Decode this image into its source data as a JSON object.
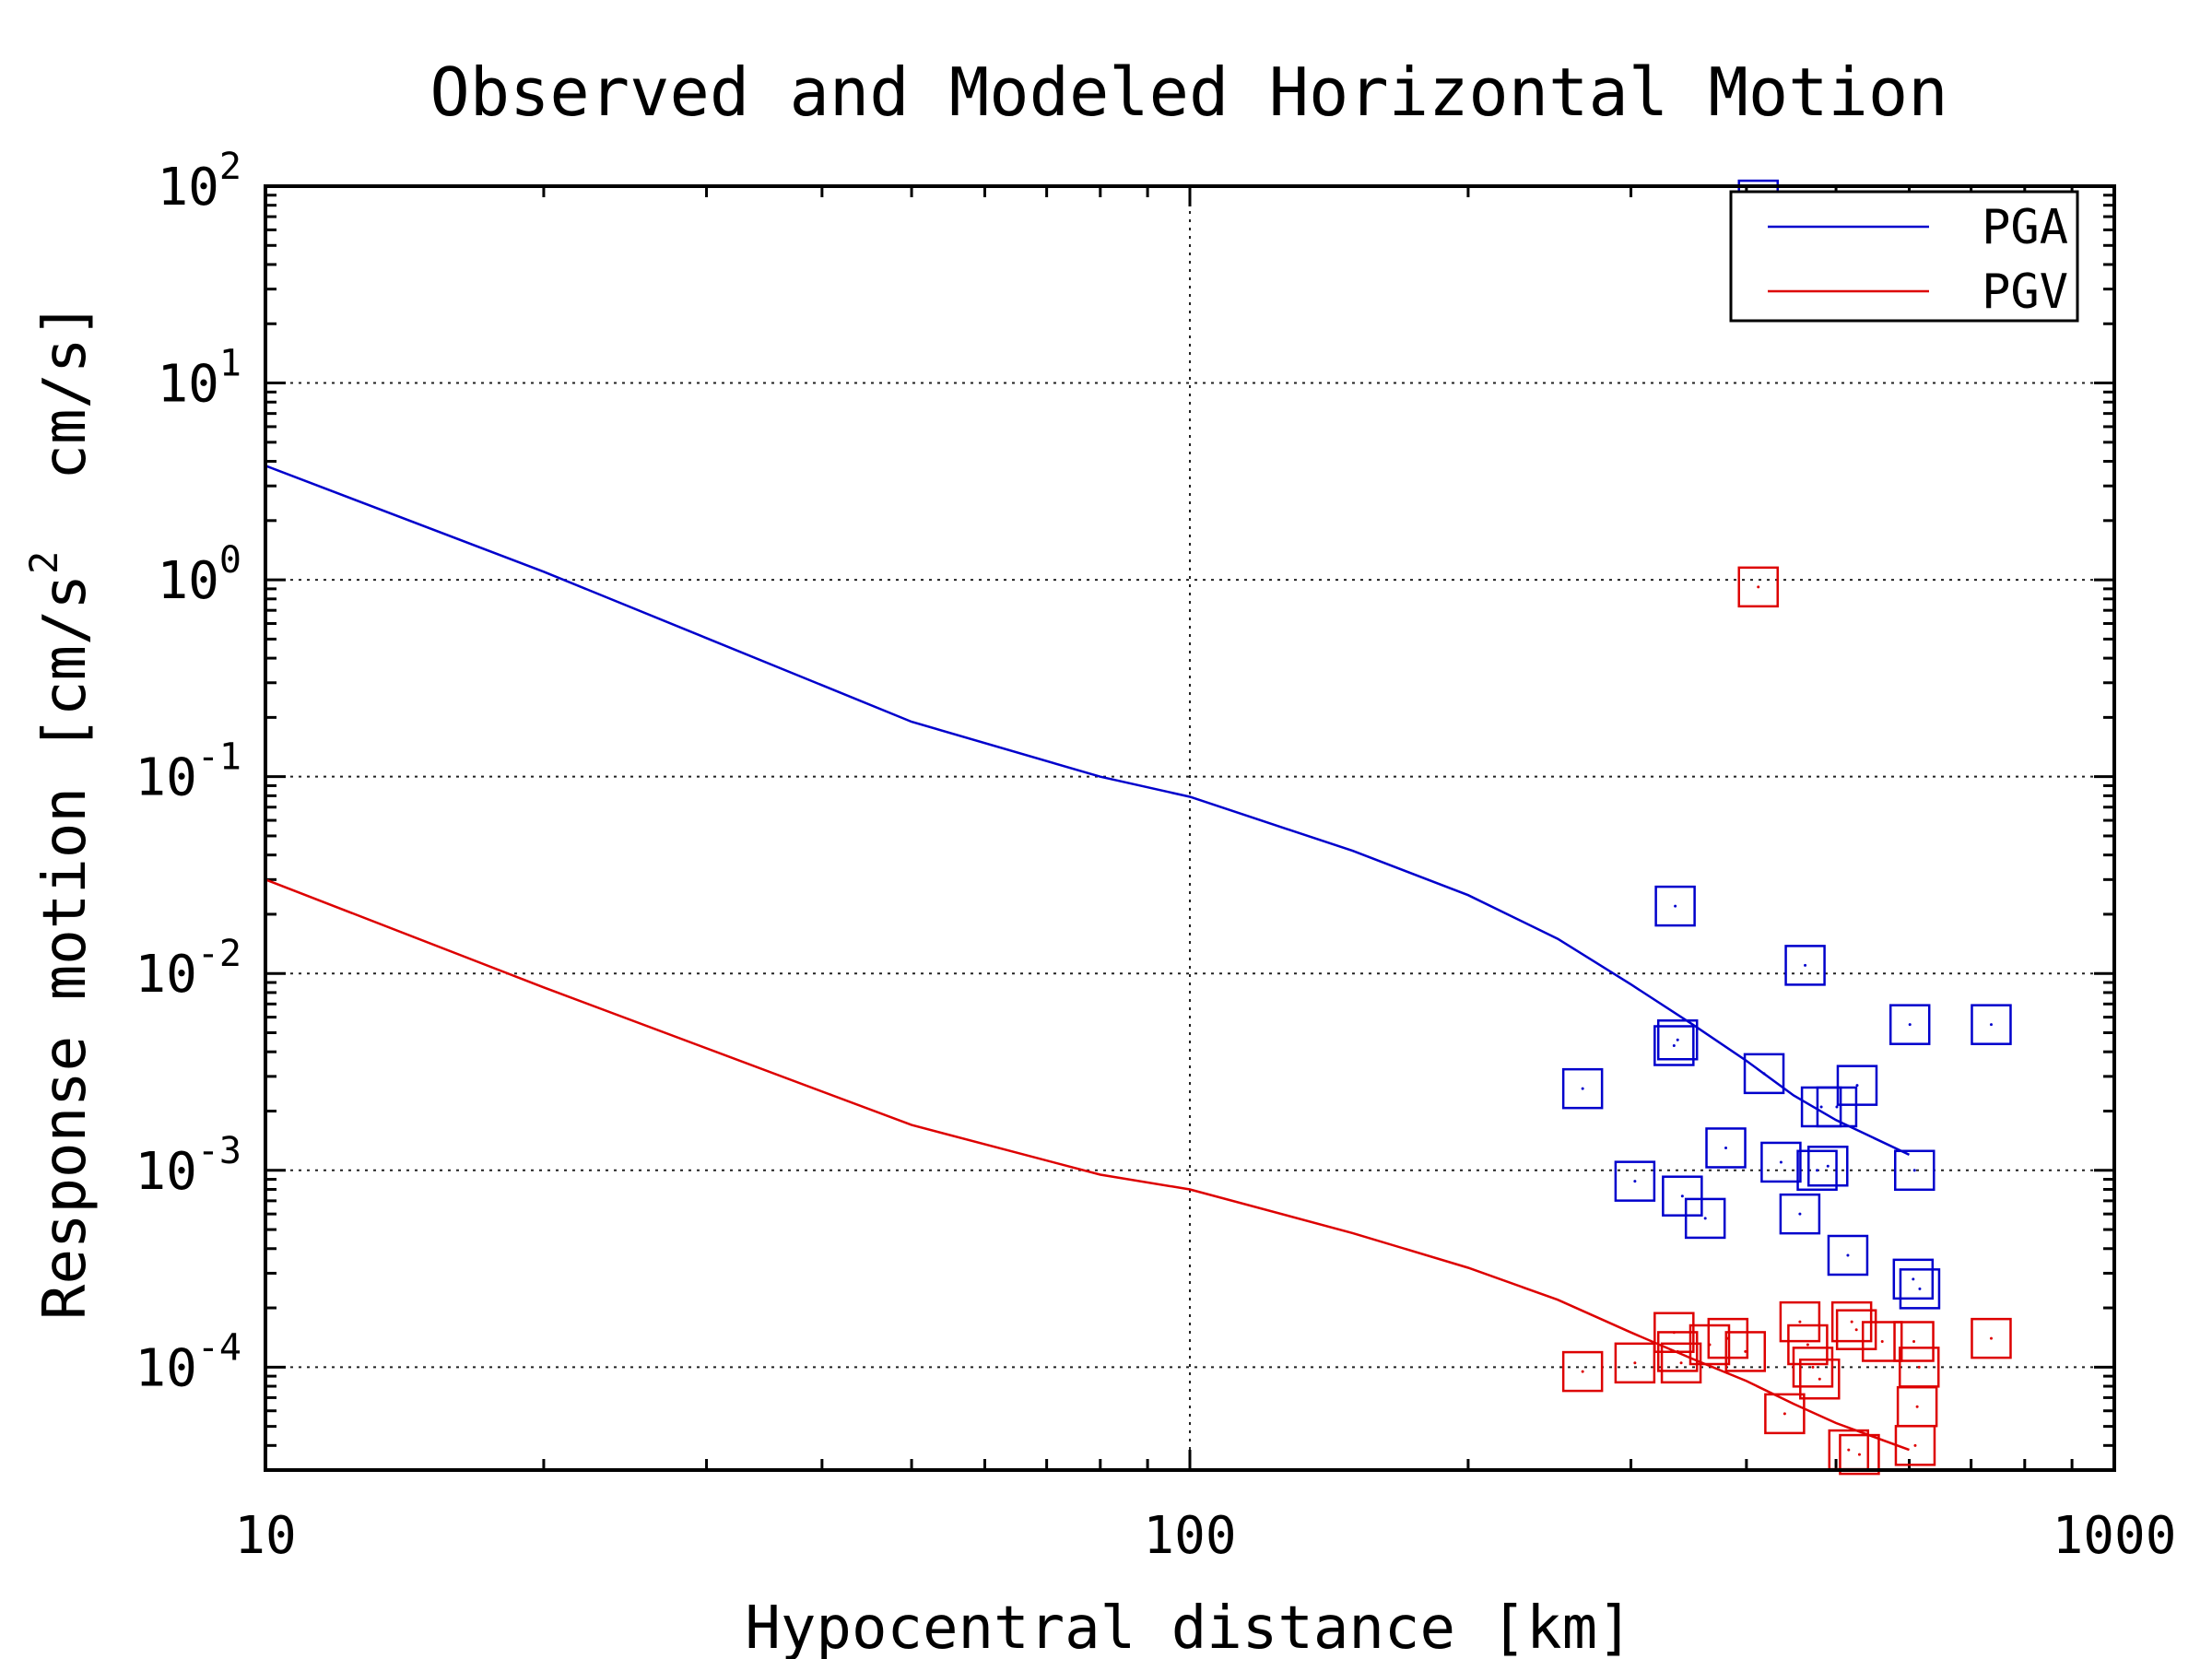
{
  "chart_data": {
    "type": "scatter",
    "title": "Observed and Modeled Horizontal Motion",
    "xlabel": "Hypocentral distance [km]",
    "ylabel": {
      "prefix": "Response motion [cm/s",
      "sup": "2",
      "suffix": "  cm/s]"
    },
    "xscale": "log",
    "yscale": "log",
    "xlim": [
      10,
      1000
    ],
    "ylim": [
      3e-05,
      100
    ],
    "xticks": [
      {
        "value": 10,
        "label": "10"
      },
      {
        "value": 100,
        "label": "100"
      },
      {
        "value": 1000,
        "label": "1000"
      }
    ],
    "yticks": [
      {
        "value": 100,
        "base": "10",
        "exp": "2"
      },
      {
        "value": 10,
        "base": "10",
        "exp": "1"
      },
      {
        "value": 1,
        "base": "10",
        "exp": "0"
      },
      {
        "value": 0.1,
        "base": "10",
        "exp": "-1"
      },
      {
        "value": 0.01,
        "base": "10",
        "exp": "-2"
      },
      {
        "value": 0.001,
        "base": "10",
        "exp": "-3"
      },
      {
        "value": 0.0001,
        "base": "10",
        "exp": "-4"
      }
    ],
    "grid": true,
    "legend_position": "top-right",
    "series": [
      {
        "name": "PGA",
        "color": "#0000cc",
        "line": {
          "x": [
            10,
            20,
            50,
            80,
            100,
            150,
            200,
            250,
            300,
            350,
            400,
            450,
            500,
            600
          ],
          "y": [
            3.8,
            1.1,
            0.19,
            0.1,
            0.079,
            0.042,
            0.025,
            0.015,
            0.0088,
            0.0055,
            0.0036,
            0.0024,
            0.0018,
            0.0012
          ]
        },
        "points": {
          "x": [
            412,
            335,
            463,
            601,
            736,
            266,
            334,
            337,
            418,
            527,
            482,
            501,
            380,
            436,
            303,
            341,
            490,
            477,
            608,
            361,
            457,
            515,
            606,
            616
          ],
          "y": [
            85,
            0.022,
            0.011,
            0.0055,
            0.0055,
            0.0026,
            0.0043,
            0.0046,
            0.0031,
            0.0027,
            0.0021,
            0.0021,
            0.0013,
            0.0011,
            0.00088,
            0.00074,
            0.00105,
            0.001,
            0.001,
            0.00057,
            0.0006,
            0.00037,
            0.00028,
            0.00025
          ]
        }
      },
      {
        "name": "PGV",
        "color": "#dd0000",
        "line": {
          "x": [
            10,
            20,
            50,
            80,
            100,
            150,
            200,
            250,
            300,
            350,
            400,
            450,
            500,
            600
          ],
          "y": [
            0.03,
            0.0085,
            0.0017,
            0.00095,
            0.0008,
            0.00048,
            0.00032,
            0.00022,
            0.00015,
            0.00011,
            8.5e-05,
            6.5e-05,
            5.2e-05,
            3.8e-05
          ]
        },
        "points": {
          "x": [
            412,
            266,
            303,
            334,
            337,
            340,
            365,
            382,
            399,
            457,
            440,
            472,
            480,
            520,
            526,
            561,
            615,
            612,
            609,
            516,
            530,
            607,
            736,
            466
          ],
          "y": [
            0.92,
            9.5e-05,
            0.000105,
            0.00015,
            0.00012,
            0.000105,
            0.00013,
            0.00014,
            0.00012,
            0.00017,
            5.8e-05,
            0.0001,
            8.7e-05,
            0.00017,
            0.000155,
            0.000135,
            0.0001,
            6.3e-05,
            4e-05,
            3.8e-05,
            3.6e-05,
            0.000135,
            0.00014,
            0.00013
          ]
        }
      }
    ]
  }
}
